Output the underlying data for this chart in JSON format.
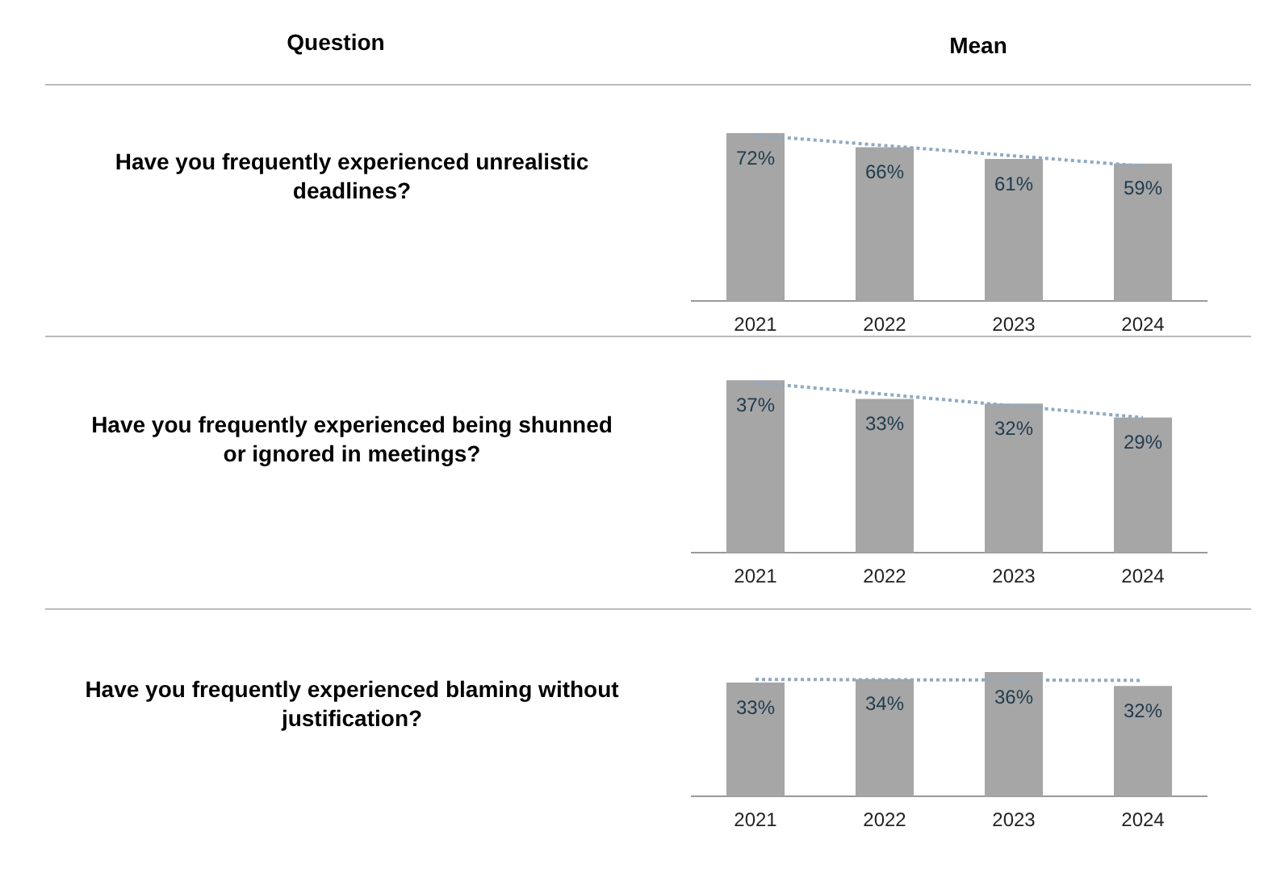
{
  "chart_data": [
    {
      "type": "bar",
      "title": "Have you frequently experienced unrealistic deadlines?",
      "annotations": [
        "Question",
        "Mean"
      ],
      "categories": [
        "2021",
        "2022",
        "2023",
        "2024"
      ],
      "tick_labels": "x",
      "legend": false,
      "grid": false,
      "series": [
        {
          "color": "#a6a6a6",
          "values": [
            72,
            66,
            61,
            59
          ],
          "value_labels": [
            "72%",
            "66%",
            "61%",
            "59%"
          ]
        },
        {
          "type": "line",
          "color": "#8faac2",
          "line_style": "dotted",
          "marker": "none",
          "values": [
            71.1,
            66.7,
            62.3,
            57.9
          ]
        }
      ]
    },
    {
      "type": "bar",
      "title": "Have you frequently experienced being shunned or ignored in meetings?",
      "categories": [
        "2021",
        "2022",
        "2023",
        "2024"
      ],
      "tick_labels": "x",
      "legend": false,
      "grid": false,
      "series": [
        {
          "color": "#a6a6a6",
          "values": [
            37,
            33,
            32,
            29
          ],
          "value_labels": [
            "37%",
            "33%",
            "32%",
            "29%"
          ]
        },
        {
          "type": "line",
          "color": "#8faac2",
          "line_style": "dotted",
          "marker": "none",
          "values": [
            36.5,
            34,
            31.5,
            29
          ]
        }
      ]
    },
    {
      "type": "bar",
      "title": "Have you frequently experienced blaming without justification?",
      "categories": [
        "2021",
        "2022",
        "2023",
        "2024"
      ],
      "tick_labels": "x",
      "legend": false,
      "grid": false,
      "series": [
        {
          "color": "#a6a6a6",
          "values": [
            33,
            34,
            36,
            32
          ],
          "value_labels": [
            "33%",
            "34%",
            "36%",
            "32%"
          ]
        },
        {
          "type": "line",
          "color": "#8faac2",
          "line_style": "dotted",
          "marker": "none",
          "values": [
            33.9,
            33.8,
            33.7,
            33.6
          ]
        }
      ]
    }
  ]
}
